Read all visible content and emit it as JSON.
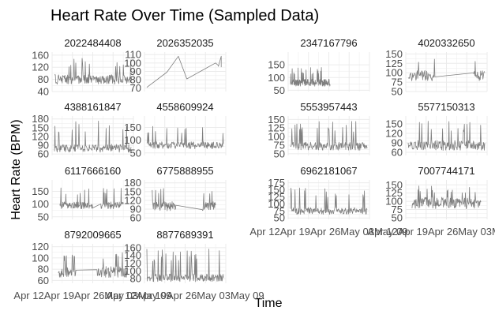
{
  "chart_data": {
    "type": "line",
    "title": "Heart Rate Over Time (Sampled Data)",
    "xlabel": "Time",
    "ylabel": "Heart Rate (BPM)",
    "x_ticks": [
      "Apr 12",
      "Apr 19",
      "Apr 26",
      "May 03",
      "May 09"
    ],
    "x_tick_text": "Apr 12Apr 19Apr 26May 03May 09",
    "grid": true,
    "line_color": "#7f7f7f",
    "grid_color": "#ebebeb",
    "panel_bg": "#ffffff",
    "panels": [
      {
        "id": "2022484408",
        "y_ticks": [
          40,
          80,
          120,
          160
        ],
        "ylim": [
          40,
          170
        ],
        "baseline": 80,
        "spread": 16,
        "spike_to": 150,
        "spike_rate": 0.09
      },
      {
        "id": "2026352035",
        "y_ticks": [
          70,
          80,
          90,
          100,
          110
        ],
        "ylim": [
          66,
          113
        ],
        "points": [
          [
            "Apr 12",
            71
          ],
          [
            "Apr 19",
            89
          ],
          [
            "Apr 23",
            108
          ],
          [
            "Apr 26",
            81
          ],
          [
            "May 06",
            100
          ],
          [
            "May 07",
            97
          ],
          [
            "May 07",
            96
          ],
          [
            "May 08",
            108
          ],
          [
            "May 08",
            95
          ]
        ]
      },
      {
        "id": "2347167796",
        "y_ticks": [
          50,
          100,
          150
        ],
        "ylim": [
          45,
          200
        ],
        "baseline": 80,
        "spread": 14,
        "spike_to": 140,
        "spike_rate": 0.1,
        "active_frac": [
          0,
          0.52
        ]
      },
      {
        "id": "4020332650",
        "y_ticks": [
          50,
          75,
          100,
          125,
          150
        ],
        "ylim": [
          50,
          155
        ],
        "baseline": 92,
        "spread": 14,
        "spike_to": 145,
        "spike_rate": 0.1,
        "gap": [
          0.35,
          0.85
        ]
      },
      {
        "id": "4388161847",
        "y_ticks": [
          60,
          90,
          120,
          150,
          180
        ],
        "ylim": [
          55,
          190
        ],
        "baseline": 80,
        "spread": 14,
        "spike_to": 175,
        "spike_rate": 0.08
      },
      {
        "id": "4558609924",
        "y_ticks": [
          50,
          100,
          150
        ],
        "ylim": [
          40,
          195
        ],
        "baseline": 80,
        "spread": 14,
        "spike_to": 155,
        "spike_rate": 0.08
      },
      {
        "id": "5553957443",
        "y_ticks": [
          50,
          75,
          100,
          125,
          150
        ],
        "ylim": [
          45,
          160
        ],
        "baseline": 72,
        "spread": 12,
        "spike_to": 145,
        "spike_rate": 0.09
      },
      {
        "id": "5577150313",
        "y_ticks": [
          60,
          90,
          120,
          150
        ],
        "ylim": [
          50,
          175
        ],
        "baseline": 82,
        "spread": 16,
        "spike_to": 160,
        "spike_rate": 0.1
      },
      {
        "id": "6117666160",
        "y_ticks": [
          50,
          100,
          150
        ],
        "ylim": [
          40,
          195
        ],
        "baseline": 95,
        "spread": 14,
        "spike_to": 165,
        "spike_rate": 0.07,
        "active_frac": [
          0.07,
          0.9
        ],
        "gap": [
          0.5,
          0.6
        ]
      },
      {
        "id": "6775888955",
        "y_ticks": [
          60,
          90,
          120,
          150,
          180
        ],
        "ylim": [
          55,
          190
        ],
        "baseline": 100,
        "spread": 16,
        "spike_to": 175,
        "spike_rate": 0.08,
        "active_frac": [
          0.07,
          0.9
        ],
        "gap": [
          0.38,
          0.72
        ]
      },
      {
        "id": "6962181067",
        "y_ticks": [
          50,
          75,
          100,
          125,
          150,
          175
        ],
        "ylim": [
          45,
          185
        ],
        "baseline": 75,
        "spread": 13,
        "spike_to": 160,
        "spike_rate": 0.08
      },
      {
        "id": "7007744171",
        "y_ticks": [
          50,
          75,
          100,
          125,
          150
        ],
        "ylim": [
          45,
          165
        ],
        "baseline": 95,
        "spread": 18,
        "spike_to": 150,
        "spike_rate": 0.1,
        "active_frac": [
          0.05,
          0.95
        ]
      },
      {
        "id": "8792009665",
        "y_ticks": [
          60,
          80,
          100,
          120
        ],
        "ylim": [
          55,
          125
        ],
        "baseline": 75,
        "spread": 10,
        "spike_to": 112,
        "spike_rate": 0.1,
        "active_frac": [
          0.05,
          0.95
        ],
        "gap": [
          0.28,
          0.55
        ]
      },
      {
        "id": "8877689391",
        "y_ticks": [
          80,
          100,
          120,
          140,
          160
        ],
        "ylim": [
          68,
          170
        ],
        "baseline": 82,
        "spread": 10,
        "spike_to": 158,
        "spike_rate": 0.1
      }
    ]
  }
}
